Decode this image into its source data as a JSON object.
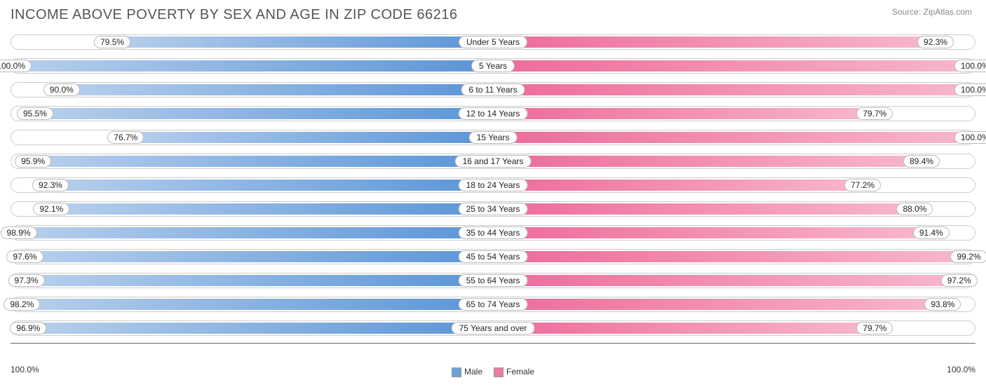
{
  "title": "INCOME ABOVE POVERTY BY SEX AND AGE IN ZIP CODE 66216",
  "source": "Source: ZipAtlas.com",
  "axis": {
    "left": "100.0%",
    "right": "100.0%"
  },
  "legend": {
    "male": "Male",
    "female": "Female"
  },
  "colors": {
    "male_start": "#b8d0ec",
    "male_end": "#5a94d6",
    "female_start": "#f7b8cd",
    "female_end": "#ed6a9a",
    "track_border": "#cccccc",
    "male_swatch": "#6fa3dc",
    "female_swatch": "#ee7aa5"
  },
  "rows": [
    {
      "category": "Under 5 Years",
      "male": 79.5,
      "male_label": "79.5%",
      "female": 92.3,
      "female_label": "92.3%"
    },
    {
      "category": "5 Years",
      "male": 100.0,
      "male_label": "100.0%",
      "female": 100.0,
      "female_label": "100.0%"
    },
    {
      "category": "6 to 11 Years",
      "male": 90.0,
      "male_label": "90.0%",
      "female": 100.0,
      "female_label": "100.0%"
    },
    {
      "category": "12 to 14 Years",
      "male": 95.5,
      "male_label": "95.5%",
      "female": 79.7,
      "female_label": "79.7%"
    },
    {
      "category": "15 Years",
      "male": 76.7,
      "male_label": "76.7%",
      "female": 100.0,
      "female_label": "100.0%"
    },
    {
      "category": "16 and 17 Years",
      "male": 95.9,
      "male_label": "95.9%",
      "female": 89.4,
      "female_label": "89.4%"
    },
    {
      "category": "18 to 24 Years",
      "male": 92.3,
      "male_label": "92.3%",
      "female": 77.2,
      "female_label": "77.2%"
    },
    {
      "category": "25 to 34 Years",
      "male": 92.1,
      "male_label": "92.1%",
      "female": 88.0,
      "female_label": "88.0%"
    },
    {
      "category": "35 to 44 Years",
      "male": 98.9,
      "male_label": "98.9%",
      "female": 91.4,
      "female_label": "91.4%"
    },
    {
      "category": "45 to 54 Years",
      "male": 97.6,
      "male_label": "97.6%",
      "female": 99.2,
      "female_label": "99.2%"
    },
    {
      "category": "55 to 64 Years",
      "male": 97.3,
      "male_label": "97.3%",
      "female": 97.2,
      "female_label": "97.2%"
    },
    {
      "category": "65 to 74 Years",
      "male": 98.2,
      "male_label": "98.2%",
      "female": 93.8,
      "female_label": "93.8%"
    },
    {
      "category": "75 Years and over",
      "male": 96.9,
      "male_label": "96.9%",
      "female": 79.7,
      "female_label": "79.7%"
    }
  ]
}
